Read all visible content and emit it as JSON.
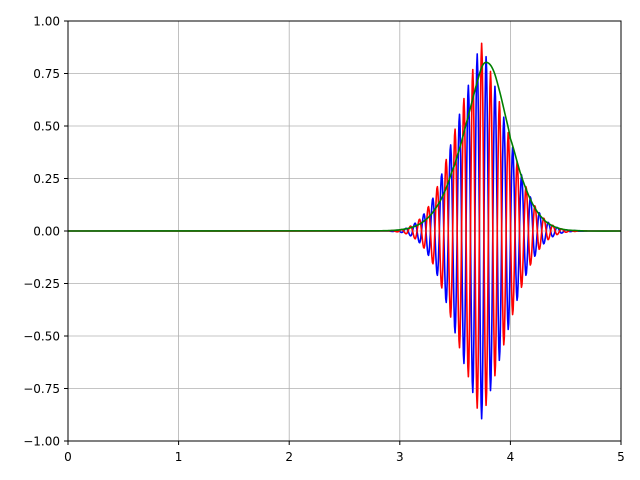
{
  "chart_data": {
    "type": "line",
    "title": "",
    "xlabel": "",
    "ylabel": "",
    "xlim": [
      0,
      5
    ],
    "ylim": [
      -1,
      1
    ],
    "grid": true,
    "legend": "none",
    "xticks": [
      "0",
      "1",
      "2",
      "3",
      "4",
      "5"
    ],
    "yticks": [
      "−1.00",
      "−0.75",
      "−0.50",
      "−0.25",
      "0.00",
      "0.25",
      "0.50",
      "0.75",
      "1.00"
    ],
    "series": [
      {
        "color": "#0000ff",
        "x": [
          0,
          2.9,
          2.94,
          2.98,
          3.02,
          3.06,
          3.1,
          3.14,
          3.18,
          3.22,
          3.26,
          3.3,
          3.34,
          3.38,
          3.42,
          3.46,
          3.5,
          3.54,
          3.58,
          3.62,
          3.66,
          3.7,
          3.74,
          3.78,
          3.82,
          3.86,
          3.9,
          3.94,
          3.98,
          4.02,
          4.06,
          4.1,
          4.14,
          4.18,
          4.22,
          4.26,
          4.3,
          4.34,
          4.38,
          4.42,
          4.46,
          4.5,
          4.54,
          4.58,
          4.62,
          4.7,
          5
        ],
        "y": [
          0,
          0,
          -0.002,
          0.004,
          -0.007,
          0.013,
          -0.023,
          0.037,
          -0.056,
          0.081,
          -0.116,
          0.156,
          -0.211,
          0.271,
          -0.34,
          0.41,
          -0.485,
          0.556,
          -0.631,
          0.694,
          -0.769,
          0.843,
          -0.894,
          0.83,
          -0.76,
          0.689,
          -0.616,
          0.542,
          -0.469,
          0.398,
          -0.33,
          0.268,
          -0.211,
          0.162,
          -0.12,
          0.087,
          -0.061,
          0.041,
          -0.027,
          0.017,
          -0.01,
          0.006,
          -0.003,
          0.002,
          -0.001,
          0,
          0
        ]
      },
      {
        "color": "#ff0000",
        "x": [
          0,
          2.9,
          2.94,
          2.98,
          3.02,
          3.06,
          3.1,
          3.14,
          3.18,
          3.22,
          3.26,
          3.3,
          3.34,
          3.38,
          3.42,
          3.46,
          3.5,
          3.54,
          3.58,
          3.62,
          3.66,
          3.7,
          3.74,
          3.78,
          3.82,
          3.86,
          3.9,
          3.94,
          3.98,
          4.02,
          4.06,
          4.1,
          4.14,
          4.18,
          4.22,
          4.26,
          4.3,
          4.34,
          4.38,
          4.42,
          4.46,
          4.5,
          4.54,
          4.58,
          4.62,
          4.7,
          5
        ],
        "y": [
          0,
          0,
          0.002,
          -0.004,
          0.007,
          -0.013,
          0.023,
          -0.037,
          0.056,
          -0.081,
          0.116,
          -0.156,
          0.211,
          -0.271,
          0.34,
          -0.41,
          0.485,
          -0.556,
          0.631,
          -0.694,
          0.769,
          -0.843,
          0.894,
          -0.83,
          0.76,
          -0.689,
          0.616,
          -0.542,
          0.469,
          -0.398,
          0.33,
          -0.268,
          0.211,
          -0.162,
          0.12,
          -0.087,
          0.061,
          -0.041,
          0.027,
          -0.017,
          0.01,
          -0.006,
          0.003,
          -0.002,
          0.001,
          0,
          0
        ]
      },
      {
        "color": "#008000",
        "x": [
          0,
          2.8,
          2.9,
          3.0,
          3.1,
          3.2,
          3.3,
          3.4,
          3.5,
          3.55,
          3.6,
          3.65,
          3.7,
          3.75,
          3.8,
          3.85,
          3.9,
          3.95,
          4.0,
          4.1,
          4.2,
          4.3,
          4.4,
          4.5,
          4.6,
          4.7,
          5
        ],
        "y": [
          0,
          0.001,
          0.002,
          0.006,
          0.016,
          0.04,
          0.09,
          0.18,
          0.32,
          0.41,
          0.51,
          0.61,
          0.71,
          0.79,
          0.8,
          0.76,
          0.67,
          0.56,
          0.44,
          0.26,
          0.13,
          0.055,
          0.02,
          0.006,
          0.002,
          0,
          0
        ]
      }
    ]
  }
}
